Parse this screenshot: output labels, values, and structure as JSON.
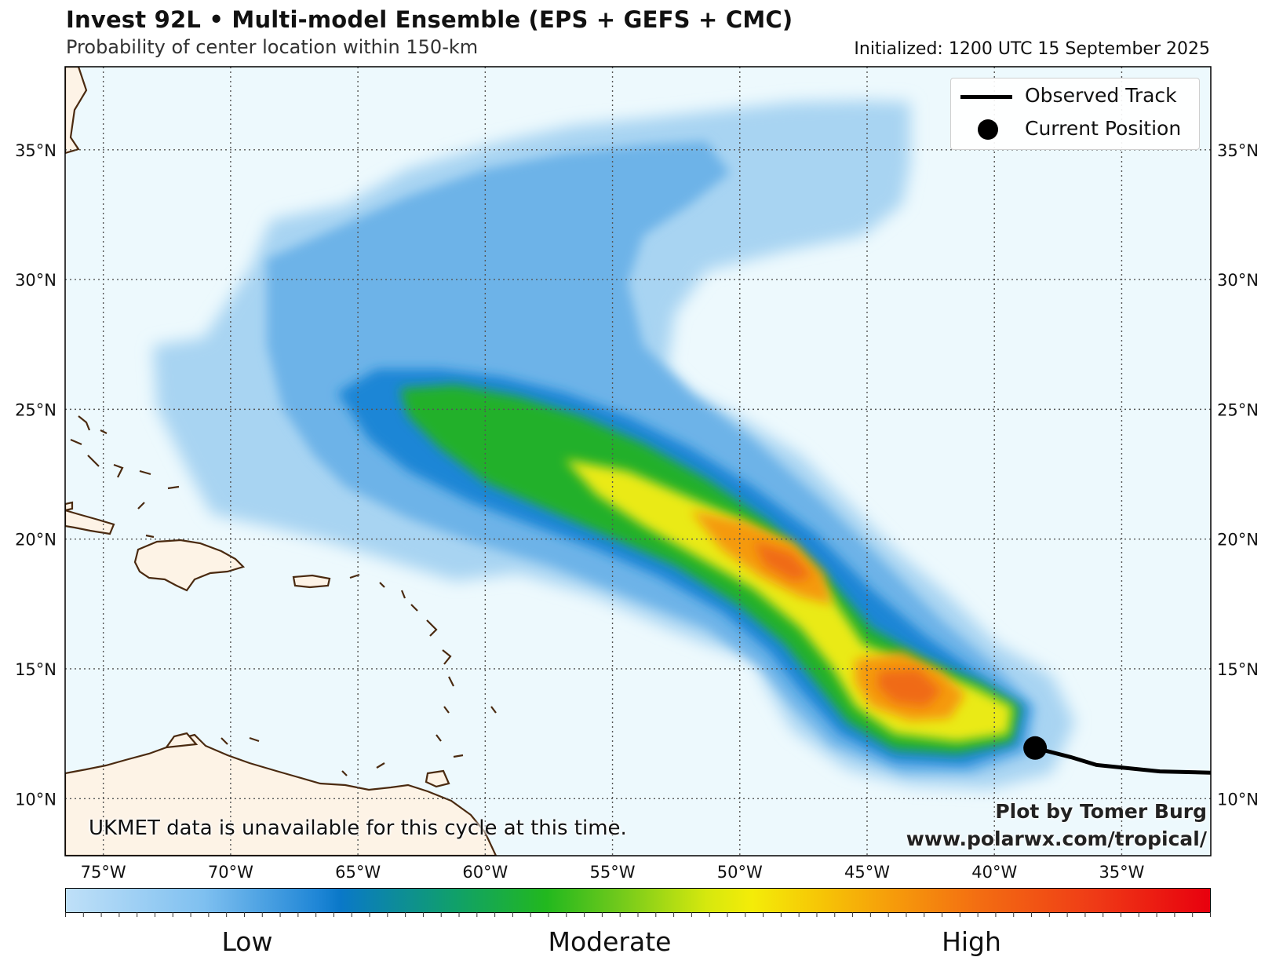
{
  "header": {
    "title": "Invest 92L • Multi-model Ensemble (EPS + GEFS + CMC)",
    "subtitle": "Probability of center location within 150-km",
    "initialized": "Initialized: 1200 UTC 15 September 2025"
  },
  "map": {
    "extent": {
      "lon_min": -76.5,
      "lon_max": -31.5,
      "lat_min": 7.8,
      "lat_max": 38.2
    },
    "ocean_color": "#edf9fd",
    "land_color": "#fdf3e6",
    "coast_color": "#4a2a10",
    "gridline_color": "#555555",
    "lat_ticks": [
      {
        "value": 10,
        "label": "10°N"
      },
      {
        "value": 15,
        "label": "15°N"
      },
      {
        "value": 20,
        "label": "20°N"
      },
      {
        "value": 25,
        "label": "25°N"
      },
      {
        "value": 30,
        "label": "30°N"
      },
      {
        "value": 35,
        "label": "35°N"
      }
    ],
    "lon_ticks": [
      {
        "value": -75,
        "label": "75°W"
      },
      {
        "value": -70,
        "label": "70°W"
      },
      {
        "value": -65,
        "label": "65°W"
      },
      {
        "value": -60,
        "label": "60°W"
      },
      {
        "value": -55,
        "label": "55°W"
      },
      {
        "value": -50,
        "label": "50°W"
      },
      {
        "value": -45,
        "label": "45°W"
      },
      {
        "value": -40,
        "label": "40°W"
      },
      {
        "value": -35,
        "label": "35°W"
      }
    ]
  },
  "legend": {
    "observed_track_label": "Observed Track",
    "current_position_label": "Current Position"
  },
  "observed_track": [
    [
      -31.5,
      11.0
    ],
    [
      -33.5,
      11.05
    ],
    [
      -36,
      11.3
    ],
    [
      -37,
      11.6
    ],
    [
      -38.4,
      11.95
    ]
  ],
  "current_position": {
    "lon": -38.4,
    "lat": 11.95
  },
  "notes": {
    "ukmet": "UKMET data is unavailable for this cycle at this time.",
    "credit_line1": "Plot by Tomer Burg",
    "credit_line2": "www.polarwx.com/tropical/"
  },
  "colorbar": {
    "labels": [
      "Low",
      "Moderate",
      "High"
    ],
    "colors": [
      "#bfe0f8",
      "#1f86d6",
      "#22b81e",
      "#f4ec08",
      "#f36c12",
      "#e8000e"
    ]
  },
  "probability_layers": {
    "low_color": "#a8d4f2",
    "lowmid_color": "#6db3e8",
    "blue_color": "#1f86d6",
    "green_color": "#22b02a",
    "yellow_color": "#eaea12",
    "orange_color": "#f59a0e",
    "red_color": "#f06a16"
  }
}
